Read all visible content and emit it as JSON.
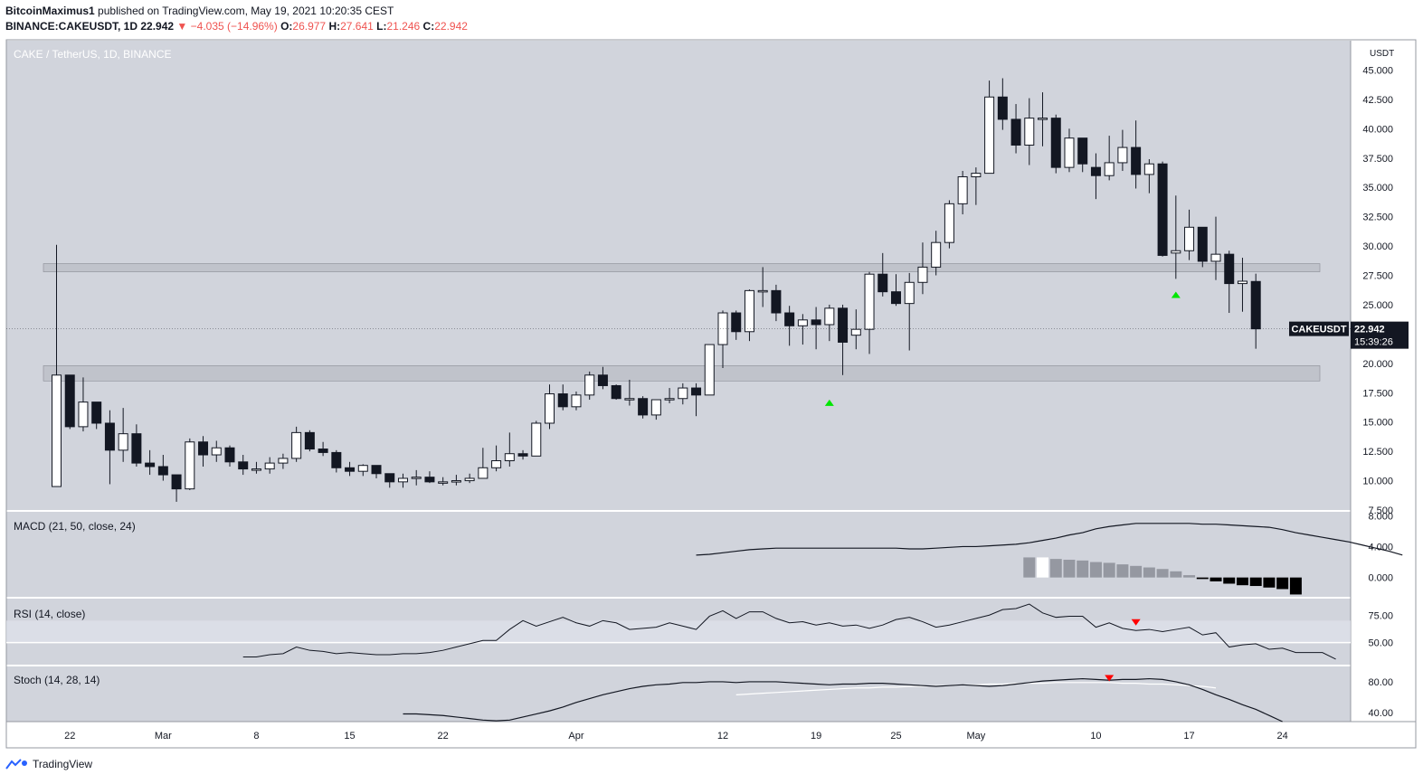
{
  "header": {
    "publisher": "BitcoinMaximus1",
    "published_text": "published on TradingView.com, May 19, 2021 10:20:35 CEST",
    "symbol": "BINANCE:CAKEUSDT, 1D",
    "last": "22.942",
    "change": "−4.035 (−14.96%)",
    "o_label": "O:",
    "o": "26.977",
    "h_label": "H:",
    "h": "27.641",
    "l_label": "L:",
    "l": "21.246",
    "c_label": "C:",
    "c": "22.942"
  },
  "footer": {
    "brand": "TradingView"
  },
  "colors": {
    "background": "#d1d4dc",
    "up_candle": "#ffffff",
    "down_candle": "#131722",
    "zone": "#b2b5be",
    "marker_up": "#00e600",
    "marker_down": "#ff0000",
    "price_tag": "#131722"
  },
  "chart_data": {
    "type": "candlestick",
    "title": "CAKE / TetherUS, 1D, BINANCE",
    "currency": "USDT",
    "price_axis": {
      "ticks": [
        "45.000",
        "42.500",
        "40.000",
        "37.500",
        "35.000",
        "32.500",
        "30.000",
        "27.500",
        "25.000",
        "22.500",
        "20.000",
        "17.500",
        "15.000",
        "12.500",
        "10.000",
        "7.500"
      ],
      "ylim": [
        7.5,
        47.5
      ]
    },
    "time_axis": {
      "ticks": [
        {
          "label": "22",
          "index": 1
        },
        {
          "label": "Mar",
          "index": 8
        },
        {
          "label": "8",
          "index": 15
        },
        {
          "label": "15",
          "index": 22
        },
        {
          "label": "22",
          "index": 29
        },
        {
          "label": "Apr",
          "index": 39
        },
        {
          "label": "12",
          "index": 50
        },
        {
          "label": "19",
          "index": 57
        },
        {
          "label": "25",
          "index": 63
        },
        {
          "label": "May",
          "index": 69
        },
        {
          "label": "10",
          "index": 78
        },
        {
          "label": "17",
          "index": 85
        },
        {
          "label": "24",
          "index": 92
        }
      ]
    },
    "last_price": {
      "label": "CAKEUSDT",
      "value": "22.942",
      "countdown": "15:39:26"
    },
    "zones": [
      {
        "low": 27.8,
        "high": 28.5
      },
      {
        "low": 18.5,
        "high": 19.8
      }
    ],
    "candles": [
      {
        "o": 9.5,
        "h": 30.1,
        "l": 9.5,
        "c": 19.0
      },
      {
        "o": 19.0,
        "h": 19.0,
        "l": 14.4,
        "c": 14.6
      },
      {
        "o": 14.6,
        "h": 18.8,
        "l": 14.2,
        "c": 16.7
      },
      {
        "o": 16.7,
        "h": 16.7,
        "l": 14.4,
        "c": 14.9
      },
      {
        "o": 14.9,
        "h": 16.0,
        "l": 9.7,
        "c": 12.6
      },
      {
        "o": 12.6,
        "h": 16.2,
        "l": 11.6,
        "c": 14.0
      },
      {
        "o": 14.0,
        "h": 14.8,
        "l": 11.2,
        "c": 11.5
      },
      {
        "o": 11.5,
        "h": 12.6,
        "l": 10.5,
        "c": 11.2
      },
      {
        "o": 11.2,
        "h": 12.2,
        "l": 10.0,
        "c": 10.5
      },
      {
        "o": 10.5,
        "h": 10.5,
        "l": 8.2,
        "c": 9.3
      },
      {
        "o": 9.3,
        "h": 13.6,
        "l": 9.2,
        "c": 13.3
      },
      {
        "o": 13.3,
        "h": 13.8,
        "l": 11.2,
        "c": 12.2
      },
      {
        "o": 12.2,
        "h": 13.4,
        "l": 11.6,
        "c": 12.8
      },
      {
        "o": 12.8,
        "h": 13.0,
        "l": 11.2,
        "c": 11.6
      },
      {
        "o": 11.6,
        "h": 12.2,
        "l": 10.5,
        "c": 11.0
      },
      {
        "o": 11.0,
        "h": 11.6,
        "l": 10.6,
        "c": 11.0
      },
      {
        "o": 11.0,
        "h": 12.0,
        "l": 10.6,
        "c": 11.5
      },
      {
        "o": 11.5,
        "h": 12.3,
        "l": 11.0,
        "c": 11.9
      },
      {
        "o": 11.9,
        "h": 14.6,
        "l": 11.6,
        "c": 14.1
      },
      {
        "o": 14.1,
        "h": 14.3,
        "l": 12.5,
        "c": 12.7
      },
      {
        "o": 12.7,
        "h": 13.3,
        "l": 12.1,
        "c": 12.4
      },
      {
        "o": 12.4,
        "h": 12.6,
        "l": 10.7,
        "c": 11.1
      },
      {
        "o": 11.1,
        "h": 11.6,
        "l": 10.4,
        "c": 10.8
      },
      {
        "o": 10.8,
        "h": 11.4,
        "l": 10.4,
        "c": 11.3
      },
      {
        "o": 11.3,
        "h": 11.3,
        "l": 10.2,
        "c": 10.6
      },
      {
        "o": 10.6,
        "h": 10.6,
        "l": 9.4,
        "c": 9.9
      },
      {
        "o": 9.9,
        "h": 10.6,
        "l": 9.4,
        "c": 10.2
      },
      {
        "o": 10.2,
        "h": 10.9,
        "l": 9.6,
        "c": 10.3
      },
      {
        "o": 10.3,
        "h": 10.8,
        "l": 9.8,
        "c": 9.9
      },
      {
        "o": 9.9,
        "h": 10.3,
        "l": 9.6,
        "c": 9.9
      },
      {
        "o": 9.9,
        "h": 10.5,
        "l": 9.6,
        "c": 10.0
      },
      {
        "o": 10.0,
        "h": 10.6,
        "l": 9.8,
        "c": 10.2
      },
      {
        "o": 10.2,
        "h": 12.8,
        "l": 10.2,
        "c": 11.1
      },
      {
        "o": 11.1,
        "h": 13.0,
        "l": 10.8,
        "c": 11.7
      },
      {
        "o": 11.7,
        "h": 14.1,
        "l": 11.2,
        "c": 12.3
      },
      {
        "o": 12.3,
        "h": 12.6,
        "l": 11.8,
        "c": 12.1
      },
      {
        "o": 12.1,
        "h": 15.1,
        "l": 12.1,
        "c": 14.9
      },
      {
        "o": 14.9,
        "h": 18.2,
        "l": 14.4,
        "c": 17.4
      },
      {
        "o": 17.4,
        "h": 18.2,
        "l": 16.0,
        "c": 16.3
      },
      {
        "o": 16.3,
        "h": 17.6,
        "l": 16.0,
        "c": 17.3
      },
      {
        "o": 17.3,
        "h": 19.3,
        "l": 16.9,
        "c": 19.0
      },
      {
        "o": 19.0,
        "h": 19.7,
        "l": 17.8,
        "c": 18.1
      },
      {
        "o": 18.1,
        "h": 18.2,
        "l": 16.9,
        "c": 17.0
      },
      {
        "o": 17.0,
        "h": 18.6,
        "l": 16.4,
        "c": 17.0
      },
      {
        "o": 17.0,
        "h": 17.2,
        "l": 15.3,
        "c": 15.6
      },
      {
        "o": 15.6,
        "h": 16.9,
        "l": 15.2,
        "c": 16.9
      },
      {
        "o": 16.9,
        "h": 17.9,
        "l": 16.6,
        "c": 17.0
      },
      {
        "o": 17.0,
        "h": 18.3,
        "l": 16.5,
        "c": 17.9
      },
      {
        "o": 17.9,
        "h": 18.3,
        "l": 15.5,
        "c": 17.3
      },
      {
        "o": 17.3,
        "h": 21.6,
        "l": 17.3,
        "c": 21.6
      },
      {
        "o": 21.6,
        "h": 24.5,
        "l": 19.6,
        "c": 24.3
      },
      {
        "o": 24.3,
        "h": 24.5,
        "l": 22.0,
        "c": 22.7
      },
      {
        "o": 22.7,
        "h": 26.3,
        "l": 21.9,
        "c": 26.2
      },
      {
        "o": 26.2,
        "h": 28.2,
        "l": 24.8,
        "c": 26.2
      },
      {
        "o": 26.2,
        "h": 26.7,
        "l": 23.6,
        "c": 24.3
      },
      {
        "o": 24.3,
        "h": 24.9,
        "l": 21.5,
        "c": 23.2
      },
      {
        "o": 23.2,
        "h": 24.2,
        "l": 21.6,
        "c": 23.7
      },
      {
        "o": 23.7,
        "h": 24.8,
        "l": 21.2,
        "c": 23.3
      },
      {
        "o": 23.3,
        "h": 25.0,
        "l": 21.9,
        "c": 24.7
      },
      {
        "o": 24.7,
        "h": 25.0,
        "l": 19.0,
        "c": 21.8
      },
      {
        "o": 22.4,
        "h": 24.6,
        "l": 21.2,
        "c": 22.9
      },
      {
        "o": 22.9,
        "h": 27.8,
        "l": 20.8,
        "c": 27.6
      },
      {
        "o": 27.6,
        "h": 29.4,
        "l": 25.7,
        "c": 26.1
      },
      {
        "o": 26.1,
        "h": 27.6,
        "l": 24.9,
        "c": 25.1
      },
      {
        "o": 25.1,
        "h": 27.7,
        "l": 21.1,
        "c": 26.9
      },
      {
        "o": 26.9,
        "h": 30.3,
        "l": 25.9,
        "c": 28.2
      },
      {
        "o": 28.2,
        "h": 31.3,
        "l": 27.5,
        "c": 30.3
      },
      {
        "o": 30.3,
        "h": 33.9,
        "l": 29.8,
        "c": 33.6
      },
      {
        "o": 33.6,
        "h": 36.4,
        "l": 32.7,
        "c": 35.9
      },
      {
        "o": 35.9,
        "h": 36.7,
        "l": 33.5,
        "c": 36.2
      },
      {
        "o": 36.2,
        "h": 44.1,
        "l": 36.2,
        "c": 42.7
      },
      {
        "o": 42.7,
        "h": 44.3,
        "l": 39.9,
        "c": 40.8
      },
      {
        "o": 40.8,
        "h": 42.1,
        "l": 37.9,
        "c": 38.6
      },
      {
        "o": 38.6,
        "h": 42.6,
        "l": 36.9,
        "c": 40.9
      },
      {
        "o": 40.9,
        "h": 43.1,
        "l": 38.5,
        "c": 40.9
      },
      {
        "o": 40.9,
        "h": 41.2,
        "l": 36.2,
        "c": 36.7
      },
      {
        "o": 36.7,
        "h": 40.0,
        "l": 36.3,
        "c": 39.2
      },
      {
        "o": 39.2,
        "h": 39.2,
        "l": 36.3,
        "c": 37.0
      },
      {
        "o": 36.7,
        "h": 37.9,
        "l": 34.0,
        "c": 36.0
      },
      {
        "o": 36.0,
        "h": 39.4,
        "l": 35.6,
        "c": 37.1
      },
      {
        "o": 37.1,
        "h": 39.9,
        "l": 36.4,
        "c": 38.4
      },
      {
        "o": 38.4,
        "h": 40.7,
        "l": 34.9,
        "c": 36.1
      },
      {
        "o": 36.1,
        "h": 37.4,
        "l": 34.5,
        "c": 37.0
      },
      {
        "o": 37.0,
        "h": 37.2,
        "l": 29.1,
        "c": 29.2
      },
      {
        "o": 29.4,
        "h": 34.3,
        "l": 27.2,
        "c": 29.6
      },
      {
        "o": 29.6,
        "h": 33.1,
        "l": 28.8,
        "c": 31.6
      },
      {
        "o": 31.6,
        "h": 31.6,
        "l": 28.2,
        "c": 28.7
      },
      {
        "o": 28.7,
        "h": 32.5,
        "l": 27.1,
        "c": 29.3
      },
      {
        "o": 29.3,
        "h": 29.6,
        "l": 24.3,
        "c": 26.8
      },
      {
        "o": 26.8,
        "h": 29.0,
        "l": 24.4,
        "c": 27.0
      },
      {
        "o": 26.977,
        "h": 27.641,
        "l": 21.246,
        "c": 22.942
      }
    ],
    "markers": [
      {
        "index": 58,
        "type": "up",
        "price": 16.6
      },
      {
        "index": 84,
        "type": "up",
        "price": 25.8
      }
    ],
    "macd": {
      "label": "MACD (21, 50, close, 24)",
      "ticks": [
        "8.000",
        "4.000",
        "0.000"
      ],
      "ylim": [
        -2.5,
        8.5
      ],
      "start_index": 48,
      "line": [
        2.9,
        3.0,
        3.2,
        3.4,
        3.6,
        3.7,
        3.8,
        3.8,
        3.8,
        3.8,
        3.8,
        3.8,
        3.8,
        3.8,
        3.8,
        3.8,
        3.7,
        3.7,
        3.8,
        3.9,
        4.0,
        4.0,
        4.1,
        4.2,
        4.3,
        4.5,
        4.8,
        5.1,
        5.5,
        5.8,
        6.3,
        6.6,
        6.8,
        7.0,
        7.0,
        7.0,
        7.0,
        7.0,
        6.9,
        6.9,
        6.8,
        6.7,
        6.6,
        6.5,
        6.2,
        5.8,
        5.5,
        5.2,
        4.9,
        4.6,
        4.2,
        3.8,
        3.4,
        2.9
      ],
      "hist_start_index": 73,
      "histogram": [
        2.6,
        2.6,
        2.4,
        2.3,
        2.2,
        2.0,
        1.9,
        1.7,
        1.5,
        1.3,
        1.1,
        0.8,
        0.3,
        -0.2,
        -0.5,
        -0.8,
        -1.0,
        -1.1,
        -1.3,
        -1.5,
        -2.2
      ]
    },
    "rsi": {
      "label": "RSI (14, close)",
      "ticks": [
        "75.00",
        "50.00"
      ],
      "ylim": [
        30,
        90
      ],
      "band": [
        50,
        70
      ],
      "start_index": 14,
      "values": [
        37,
        37,
        39,
        40,
        46,
        43,
        42,
        40,
        41,
        40,
        39,
        39,
        40,
        40,
        41,
        43,
        46,
        49,
        52,
        52,
        62,
        70,
        65,
        69,
        73,
        68,
        65,
        70,
        68,
        62,
        63,
        64,
        68,
        65,
        62,
        74,
        79,
        72,
        78,
        78,
        72,
        68,
        69,
        66,
        68,
        65,
        66,
        63,
        66,
        71,
        73,
        69,
        64,
        66,
        69,
        72,
        75,
        80,
        81,
        85,
        77,
        73,
        74,
        74,
        64,
        68,
        63,
        61,
        62,
        60,
        62,
        64,
        57,
        59,
        46,
        48,
        49,
        44,
        45,
        41,
        41,
        41,
        35
      ],
      "markers": [
        {
          "index": 81,
          "type": "down",
          "value": 68
        }
      ]
    },
    "stoch": {
      "label": "Stoch (14, 28, 14)",
      "ticks": [
        "80.00",
        "40.00"
      ],
      "ylim": [
        28,
        100
      ],
      "k_start_index": 26,
      "k": [
        38,
        38,
        37,
        36,
        34,
        32,
        30,
        29,
        30,
        34,
        38,
        42,
        47,
        53,
        58,
        63,
        67,
        71,
        74,
        76,
        77,
        79,
        79,
        80,
        80,
        79,
        80,
        80,
        80,
        79,
        78,
        77,
        76,
        77,
        77,
        78,
        78,
        77,
        76,
        75,
        74,
        75,
        76,
        75,
        74,
        75,
        77,
        79,
        81,
        82,
        83,
        84,
        83,
        82,
        83,
        83,
        84,
        83,
        80,
        76,
        70,
        63,
        57,
        50,
        44,
        36,
        28
      ],
      "d_start_index": 51,
      "d": [
        63,
        64,
        65,
        66,
        67,
        68,
        69,
        70,
        71,
        72,
        72,
        73,
        73,
        74,
        74,
        75,
        75,
        76,
        76,
        77,
        77,
        78,
        78,
        78,
        79,
        79,
        79,
        79,
        79,
        78,
        78,
        77,
        77,
        76,
        75,
        74,
        72
      ],
      "markers": [
        {
          "index": 79,
          "type": "down",
          "value": 84
        }
      ]
    }
  }
}
